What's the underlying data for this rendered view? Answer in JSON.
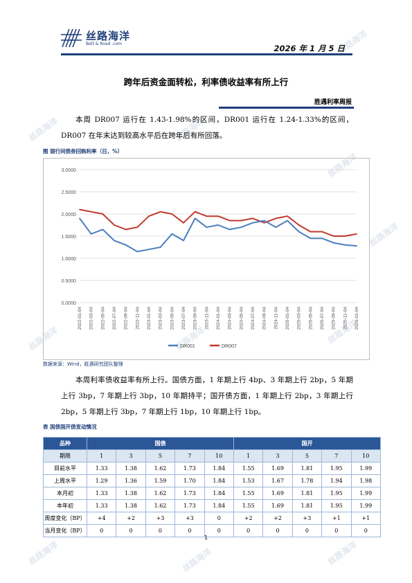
{
  "header": {
    "logo_cn": "丝路海洋",
    "logo_en": "Belt & Road .com",
    "date": "2026 年 1 月 5 日"
  },
  "title": "跨年后资金面转松，利率债收益率有所上行",
  "weekly_label": "胜遇利率周报",
  "para1": "本周 DR007 运行在 1.43-1.98%的区间，DR001 运行在 1.24-1.33%的区间，DR007 在年末达到较高水平后在跨年后有所回落。",
  "figure_caption": "图 银行间债券回购利率（日，%）",
  "source": "数据来源：Wind，胜遇研究团队整理",
  "para2": "本周利率债收益率有所上行。国债方面，1 年期上行 4bp、3 年期上行 2bp，5 年期上行 3bp，7 年期上行 3bp，10 年期持平；国开债方面，1 年期上行 2bp，3 年期上行 2bp，5 年期上行 3bp，7 年期上行 1bp，10 年期上行 1bp。",
  "table_caption": "表 国债国开债变动情况",
  "table": {
    "h_variety": "品种",
    "h_gov": "国债",
    "h_cdb": "国开",
    "h_term": "期限",
    "terms": [
      "1",
      "3",
      "5",
      "7",
      "10",
      "1",
      "3",
      "5",
      "7",
      "10"
    ],
    "rows": [
      {
        "label": "目前水平",
        "values": [
          "1.33",
          "1.38",
          "1.62",
          "1.73",
          "1.84",
          "1.55",
          "1.69",
          "1.81",
          "1.95",
          "1.99"
        ]
      },
      {
        "label": "上周水平",
        "values": [
          "1.29",
          "1.36",
          "1.59",
          "1.70",
          "1.84",
          "1.53",
          "1.67",
          "1.78",
          "1.94",
          "1.98"
        ]
      },
      {
        "label": "本月初",
        "values": [
          "1.33",
          "1.38",
          "1.62",
          "1.73",
          "1.84",
          "1.55",
          "1.69",
          "1.81",
          "1.95",
          "1.99"
        ]
      },
      {
        "label": "本年初",
        "values": [
          "1.33",
          "1.38",
          "1.62",
          "1.73",
          "1.84",
          "1.55",
          "1.69",
          "1.81",
          "1.95",
          "1.99"
        ]
      },
      {
        "label": "周度变化（BP）",
        "values": [
          "+4",
          "+2",
          "+3",
          "+3",
          "0",
          "+2",
          "+2",
          "+3",
          "+1",
          "+1"
        ]
      },
      {
        "label": "当月变化（BP）",
        "values": [
          "0",
          "0",
          "0",
          "0",
          "0",
          "0",
          "0",
          "0",
          "0",
          "0"
        ]
      }
    ]
  },
  "page_number": "1",
  "watermark": "丝路海洋",
  "colors": {
    "brand": "#1f3f78",
    "dr001": "#4a7ebf",
    "dr007": "#c0392b",
    "table_header": "#2b5797"
  },
  "chart_data": {
    "type": "line",
    "title": "",
    "ylim": [
      0,
      3
    ],
    "y_ticks": [
      "0.0000",
      "0.5000",
      "1.0000",
      "1.5000",
      "2.0000",
      "2.5000",
      "3.0000"
    ],
    "x_ticks": [
      "2022-01-04",
      "2022-03-04",
      "2022-05-04",
      "2022-07-04",
      "2022-09-04",
      "2022-11-04",
      "2023-01-04",
      "2023-03-04",
      "2023-05-04",
      "2023-07-04",
      "2023-09-04",
      "2023-11-04",
      "2024-01-04",
      "2024-03-04",
      "2024-05-04",
      "2024-07-04",
      "2024-09-04",
      "2024-11-04",
      "2025-01-04",
      "2025-03-04",
      "2025-05-04",
      "2025-07-04",
      "2025-09-04",
      "2025-11-04",
      "2026-01-04"
    ],
    "legend_position": "bottom",
    "grid": true,
    "series": [
      {
        "name": "DR001",
        "values": [
          1.9,
          1.55,
          1.65,
          1.4,
          1.3,
          1.15,
          1.2,
          1.25,
          1.55,
          1.4,
          1.9,
          1.7,
          1.75,
          1.65,
          1.7,
          1.8,
          1.85,
          1.7,
          1.85,
          1.6,
          1.45,
          1.45,
          1.35,
          1.3,
          1.28
        ]
      },
      {
        "name": "DR007",
        "values": [
          2.1,
          2.05,
          2.0,
          1.75,
          1.65,
          1.7,
          1.95,
          2.05,
          2.0,
          1.8,
          2.05,
          1.95,
          1.95,
          1.85,
          1.85,
          1.9,
          1.8,
          1.9,
          1.95,
          1.75,
          1.6,
          1.6,
          1.5,
          1.5,
          1.55
        ]
      }
    ]
  }
}
